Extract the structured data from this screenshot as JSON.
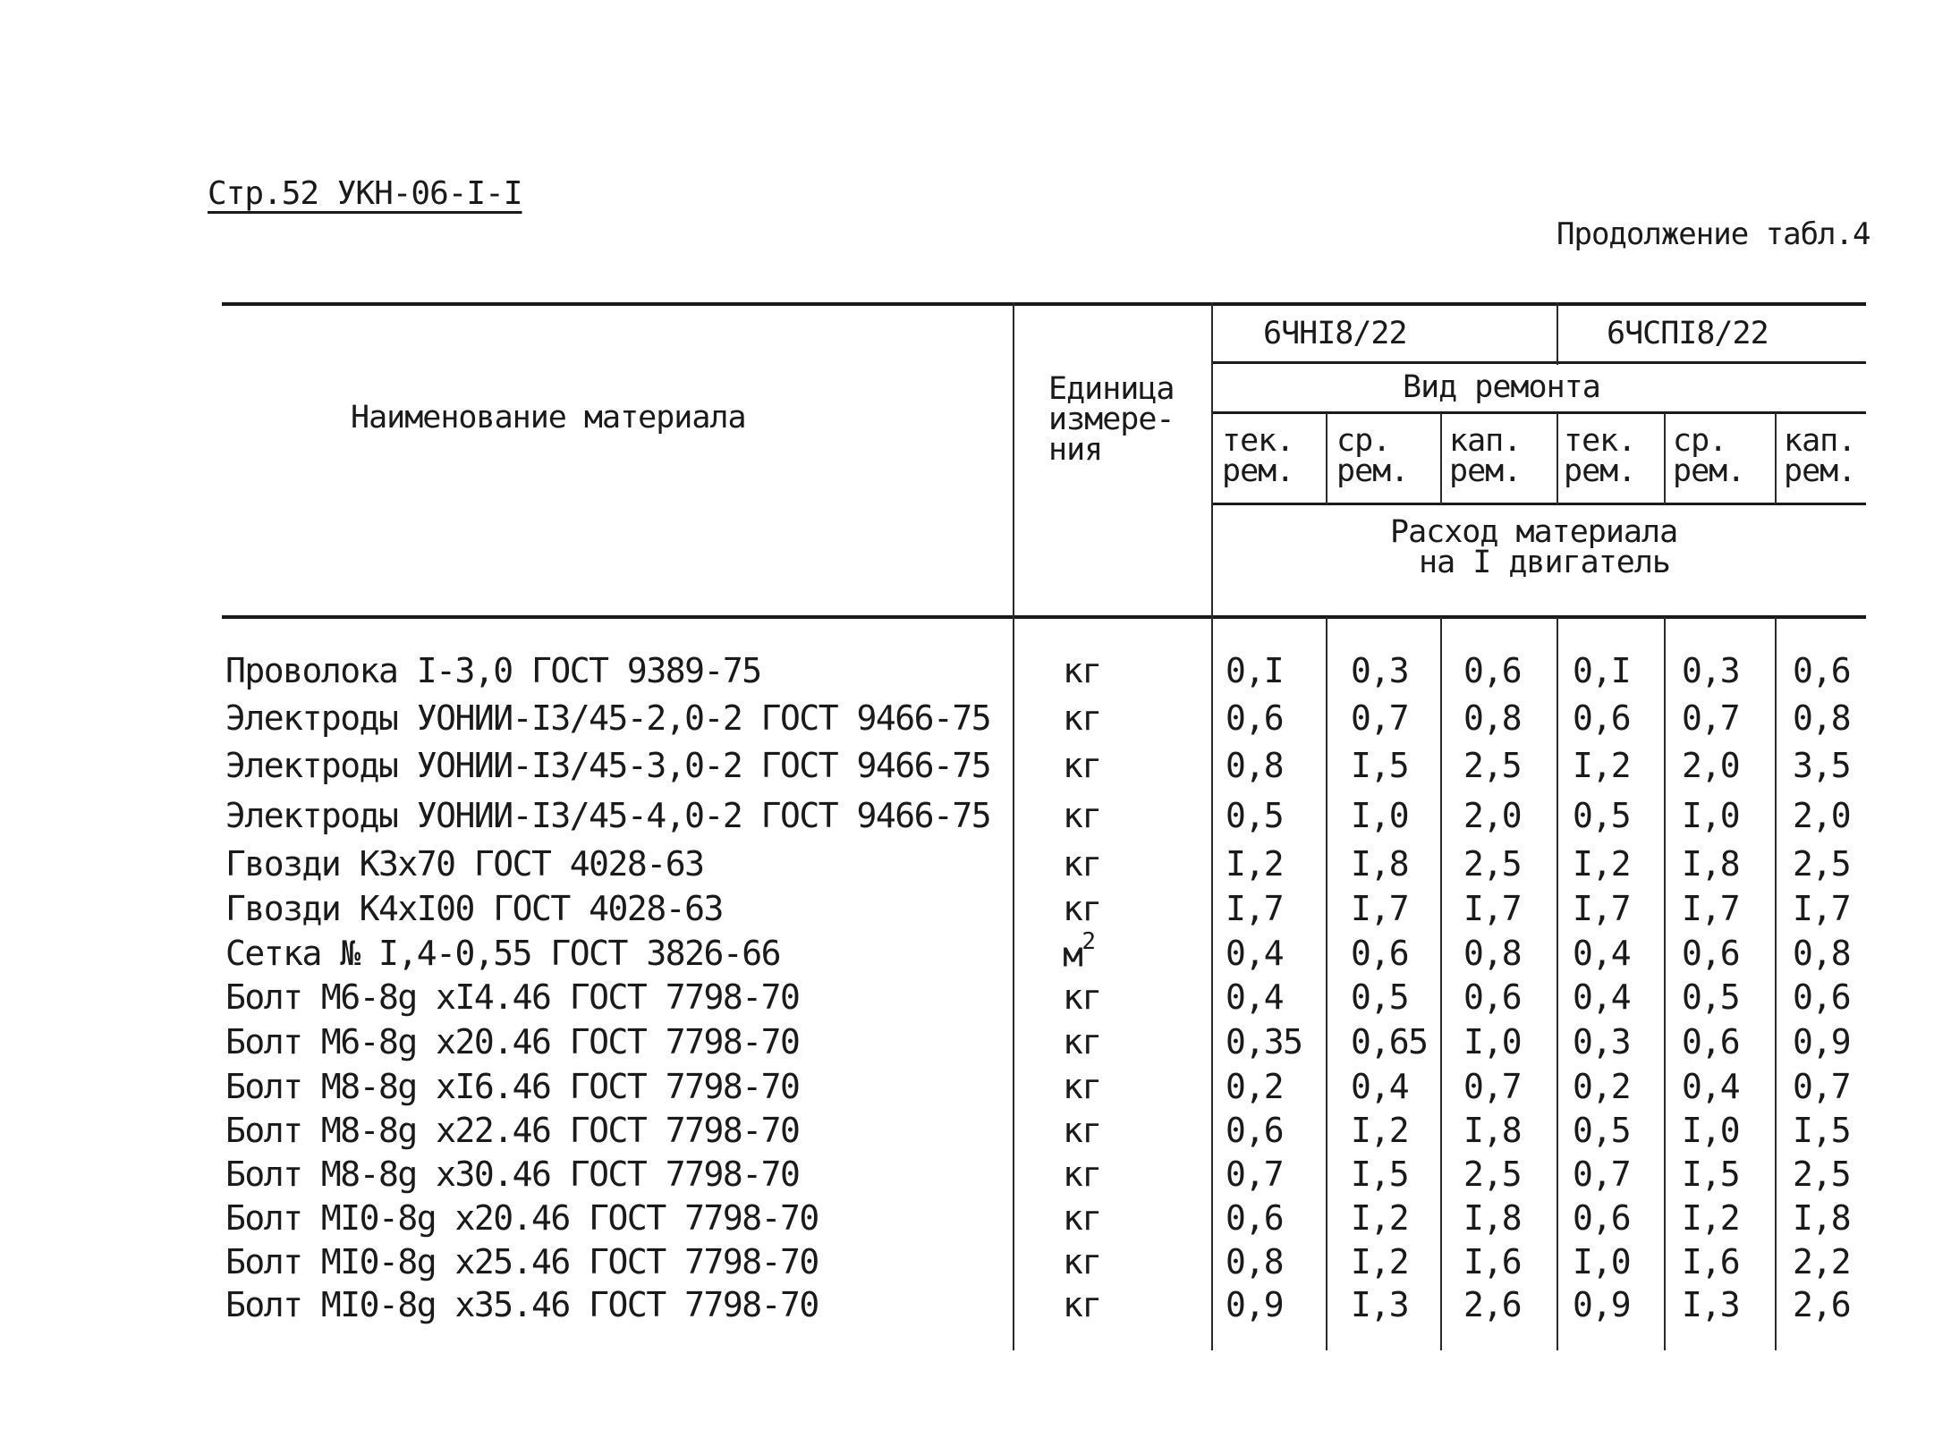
{
  "page_ref": "Стр.52 УКН-06-I-I",
  "continuation": "Продолжение табл.4",
  "header": {
    "col_name": "Наименование материала",
    "col_unit": [
      "Единица",
      "измере-",
      "ния"
    ],
    "model_1": "6ЧНI8/22",
    "model_2": "6ЧСПI8/22",
    "repair_type": "Вид ремонта",
    "repair_cols": [
      [
        "тек.",
        "рем."
      ],
      [
        "ср.",
        "рем."
      ],
      [
        "кап.",
        "рем."
      ],
      [
        "тек.",
        "рем."
      ],
      [
        "ср.",
        "рем."
      ],
      [
        "кап.",
        "рем."
      ]
    ],
    "consumption": [
      "Расход материала",
      "на I двигатель"
    ]
  },
  "rows": [
    {
      "name": "Проволока I-3,0 ГОСТ 9389-75",
      "unit": "кг",
      "values": [
        "0,I",
        "0,3",
        "0,6",
        "0,I",
        "0,3",
        "0,6"
      ]
    },
    {
      "name": "Электроды УОНИИ-I3/45-2,0-2 ГОСТ 9466-75",
      "unit": "кг",
      "values": [
        "0,6",
        "0,7",
        "0,8",
        "0,6",
        "0,7",
        "0,8"
      ]
    },
    {
      "name": "Электроды УОНИИ-I3/45-3,0-2 ГОСТ 9466-75",
      "unit": "кг",
      "values": [
        "0,8",
        "I,5",
        "2,5",
        "I,2",
        "2,0",
        "3,5"
      ]
    },
    {
      "name": "Электроды УОНИИ-I3/45-4,0-2 ГОСТ 9466-75",
      "unit": "кг",
      "values": [
        "0,5",
        "I,0",
        "2,0",
        "0,5",
        "I,0",
        "2,0"
      ]
    },
    {
      "name": "Гвозди К3х70 ГОСТ 4028-63",
      "unit": "кг",
      "values": [
        "I,2",
        "I,8",
        "2,5",
        "I,2",
        "I,8",
        "2,5"
      ]
    },
    {
      "name": "Гвозди К4хI00 ГОСТ 4028-63",
      "unit": "кг",
      "values": [
        "I,7",
        "I,7",
        "I,7",
        "I,7",
        "I,7",
        "I,7"
      ]
    },
    {
      "name": "Сетка № I,4-0,55 ГОСТ 3826-66",
      "unit": "м",
      "unit_sup": "2",
      "values": [
        "0,4",
        "0,6",
        "0,8",
        "0,4",
        "0,6",
        "0,8"
      ]
    },
    {
      "name": "Болт М6-8g хI4.46 ГОСТ 7798-70",
      "unit": "кг",
      "values": [
        "0,4",
        "0,5",
        "0,6",
        "0,4",
        "0,5",
        "0,6"
      ]
    },
    {
      "name": "Болт М6-8g х20.46 ГОСТ 7798-70",
      "unit": "кг",
      "values": [
        "0,35",
        "0,65",
        "I,0",
        "0,3",
        "0,6",
        "0,9"
      ]
    },
    {
      "name": "Болт М8-8g хI6.46 ГОСТ 7798-70",
      "unit": "кг",
      "values": [
        "0,2",
        "0,4",
        "0,7",
        "0,2",
        "0,4",
        "0,7"
      ]
    },
    {
      "name": "Болт М8-8g х22.46 ГОСТ 7798-70",
      "unit": "кг",
      "values": [
        "0,6",
        "I,2",
        "I,8",
        "0,5",
        "I,0",
        "I,5"
      ]
    },
    {
      "name": "Болт М8-8g х30.46 ГОСТ 7798-70",
      "unit": "кг",
      "values": [
        "0,7",
        "I,5",
        "2,5",
        "0,7",
        "I,5",
        "2,5"
      ]
    },
    {
      "name": "Болт МI0-8g х20.46 ГОСТ 7798-70",
      "unit": "кг",
      "values": [
        "0,6",
        "I,2",
        "I,8",
        "0,6",
        "I,2",
        "I,8"
      ]
    },
    {
      "name": "Болт МI0-8g х25.46 ГОСТ 7798-70",
      "unit": "кг",
      "values": [
        "0,8",
        "I,2",
        "I,6",
        "I,0",
        "I,6",
        "2,2"
      ]
    },
    {
      "name": "Болт МI0-8g х35.46 ГОСТ 7798-70",
      "unit": "кг",
      "values": [
        "0,9",
        "I,3",
        "2,6",
        "0,9",
        "I,3",
        "2,6"
      ]
    }
  ]
}
